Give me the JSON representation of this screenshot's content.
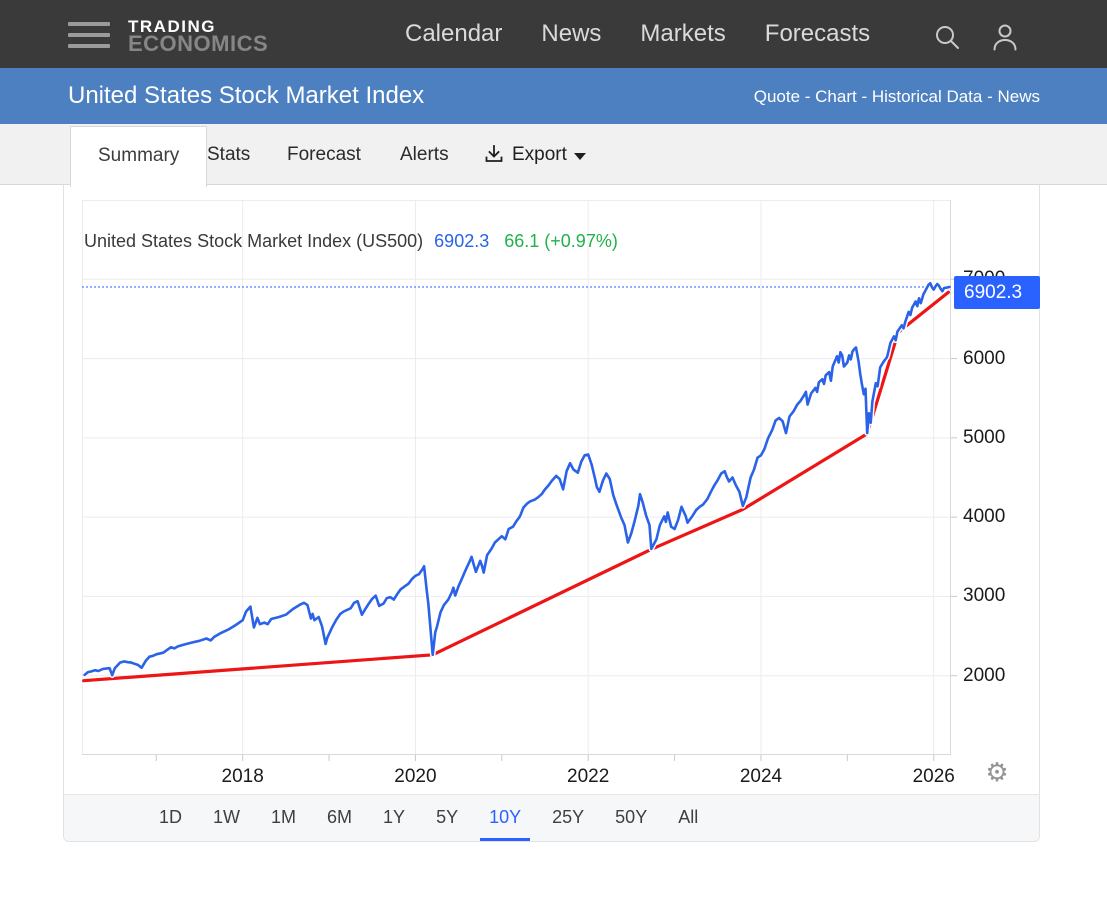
{
  "nav": {
    "logo_line1": "TRADING",
    "logo_line2": "ECONOMICS",
    "items": [
      "Calendar",
      "News",
      "Markets",
      "Forecasts"
    ]
  },
  "subheader": {
    "title": "United States Stock Market Index",
    "links": [
      "Quote",
      "Chart",
      "Historical Data",
      "News"
    ],
    "separator": " - "
  },
  "tabs": {
    "items": [
      "Summary",
      "Stats",
      "Forecast",
      "Alerts"
    ],
    "active": "Summary",
    "export": {
      "label": "Export"
    }
  },
  "chart": {
    "heading": "United States Stock Market Index (US500)",
    "last_value_text": "6902.3",
    "change_text": "66.1 (+0.97%)",
    "price_badge": "6902.3",
    "colors": {
      "line": "#2a62e8",
      "trend": "#ed1515",
      "badge": "#2962ff",
      "value_text": "#2a62e8",
      "change_text": "#21b14b",
      "grid": "#ececec",
      "axis_border": "#d9d9d9",
      "tick": "#c9c9c9",
      "dotted": "#2962ff"
    }
  },
  "chart_data": {
    "type": "line",
    "title": "United States Stock Market Index (US500)",
    "last_value": 6902.3,
    "change": 66.1,
    "change_pct": "+0.97%",
    "x_ticks": [
      2018,
      2020,
      2022,
      2024,
      2026
    ],
    "y_ticks": [
      2000,
      3000,
      4000,
      5000,
      6000,
      7000
    ],
    "x_range": [
      2016.14,
      2026.2
    ],
    "y_range": [
      1000,
      8000
    ],
    "grid": true,
    "legend_position": "none",
    "current_value_line": 6902.3,
    "series": [
      {
        "name": "US500 index",
        "color": "#2a62e8",
        "points": [
          [
            2016.17,
            2010
          ],
          [
            2016.21,
            2045
          ],
          [
            2016.25,
            2055
          ],
          [
            2016.29,
            2070
          ],
          [
            2016.33,
            2060
          ],
          [
            2016.38,
            2085
          ],
          [
            2016.42,
            2090
          ],
          [
            2016.46,
            2095
          ],
          [
            2016.49,
            2005
          ],
          [
            2016.52,
            2095
          ],
          [
            2016.58,
            2165
          ],
          [
            2016.63,
            2180
          ],
          [
            2016.67,
            2170
          ],
          [
            2016.71,
            2165
          ],
          [
            2016.75,
            2150
          ],
          [
            2016.79,
            2135
          ],
          [
            2016.83,
            2100
          ],
          [
            2016.88,
            2190
          ],
          [
            2016.92,
            2240
          ],
          [
            2016.96,
            2250
          ],
          [
            2017.0,
            2270
          ],
          [
            2017.08,
            2290
          ],
          [
            2017.17,
            2360
          ],
          [
            2017.21,
            2345
          ],
          [
            2017.25,
            2370
          ],
          [
            2017.33,
            2395
          ],
          [
            2017.42,
            2420
          ],
          [
            2017.5,
            2440
          ],
          [
            2017.58,
            2470
          ],
          [
            2017.63,
            2445
          ],
          [
            2017.67,
            2490
          ],
          [
            2017.75,
            2540
          ],
          [
            2017.83,
            2580
          ],
          [
            2017.92,
            2640
          ],
          [
            2018.0,
            2700
          ],
          [
            2018.04,
            2810
          ],
          [
            2018.09,
            2872
          ],
          [
            2018.13,
            2610
          ],
          [
            2018.17,
            2730
          ],
          [
            2018.2,
            2650
          ],
          [
            2018.25,
            2670
          ],
          [
            2018.29,
            2650
          ],
          [
            2018.33,
            2715
          ],
          [
            2018.42,
            2740
          ],
          [
            2018.5,
            2770
          ],
          [
            2018.58,
            2840
          ],
          [
            2018.67,
            2900
          ],
          [
            2018.71,
            2920
          ],
          [
            2018.75,
            2890
          ],
          [
            2018.79,
            2720
          ],
          [
            2018.81,
            2780
          ],
          [
            2018.83,
            2700
          ],
          [
            2018.88,
            2740
          ],
          [
            2018.92,
            2620
          ],
          [
            2018.96,
            2400
          ],
          [
            2018.98,
            2480
          ],
          [
            2019.04,
            2620
          ],
          [
            2019.08,
            2700
          ],
          [
            2019.13,
            2780
          ],
          [
            2019.17,
            2810
          ],
          [
            2019.25,
            2850
          ],
          [
            2019.29,
            2920
          ],
          [
            2019.33,
            2940
          ],
          [
            2019.38,
            2770
          ],
          [
            2019.42,
            2840
          ],
          [
            2019.46,
            2910
          ],
          [
            2019.5,
            2970
          ],
          [
            2019.54,
            3010
          ],
          [
            2019.58,
            2880
          ],
          [
            2019.63,
            2910
          ],
          [
            2019.67,
            2980
          ],
          [
            2019.71,
            2990
          ],
          [
            2019.75,
            2960
          ],
          [
            2019.79,
            3030
          ],
          [
            2019.83,
            3090
          ],
          [
            2019.88,
            3130
          ],
          [
            2019.92,
            3160
          ],
          [
            2019.96,
            3220
          ],
          [
            2020.0,
            3260
          ],
          [
            2020.04,
            3280
          ],
          [
            2020.08,
            3340
          ],
          [
            2020.1,
            3380
          ],
          [
            2020.13,
            3080
          ],
          [
            2020.15,
            2900
          ],
          [
            2020.17,
            2650
          ],
          [
            2020.2,
            2264
          ],
          [
            2020.23,
            2550
          ],
          [
            2020.25,
            2620
          ],
          [
            2020.29,
            2800
          ],
          [
            2020.33,
            2890
          ],
          [
            2020.38,
            2960
          ],
          [
            2020.42,
            3050
          ],
          [
            2020.44,
            3110
          ],
          [
            2020.46,
            3010
          ],
          [
            2020.5,
            3130
          ],
          [
            2020.54,
            3230
          ],
          [
            2020.58,
            3330
          ],
          [
            2020.63,
            3450
          ],
          [
            2020.65,
            3500
          ],
          [
            2020.67,
            3420
          ],
          [
            2020.7,
            3310
          ],
          [
            2020.75,
            3450
          ],
          [
            2020.77,
            3390
          ],
          [
            2020.79,
            3300
          ],
          [
            2020.83,
            3520
          ],
          [
            2020.88,
            3600
          ],
          [
            2020.92,
            3680
          ],
          [
            2020.96,
            3720
          ],
          [
            2021.0,
            3760
          ],
          [
            2021.04,
            3720
          ],
          [
            2021.08,
            3850
          ],
          [
            2021.13,
            3880
          ],
          [
            2021.17,
            3950
          ],
          [
            2021.21,
            4010
          ],
          [
            2021.25,
            4120
          ],
          [
            2021.29,
            4170
          ],
          [
            2021.33,
            4200
          ],
          [
            2021.38,
            4220
          ],
          [
            2021.42,
            4250
          ],
          [
            2021.46,
            4290
          ],
          [
            2021.5,
            4350
          ],
          [
            2021.54,
            4400
          ],
          [
            2021.58,
            4460
          ],
          [
            2021.63,
            4520
          ],
          [
            2021.67,
            4480
          ],
          [
            2021.71,
            4350
          ],
          [
            2021.75,
            4580
          ],
          [
            2021.79,
            4680
          ],
          [
            2021.83,
            4600
          ],
          [
            2021.88,
            4560
          ],
          [
            2021.92,
            4700
          ],
          [
            2021.96,
            4780
          ],
          [
            2022.0,
            4790
          ],
          [
            2022.04,
            4660
          ],
          [
            2022.08,
            4480
          ],
          [
            2022.1,
            4380
          ],
          [
            2022.13,
            4320
          ],
          [
            2022.17,
            4460
          ],
          [
            2022.21,
            4550
          ],
          [
            2022.25,
            4480
          ],
          [
            2022.29,
            4280
          ],
          [
            2022.33,
            4150
          ],
          [
            2022.38,
            4000
          ],
          [
            2022.42,
            3900
          ],
          [
            2022.46,
            3680
          ],
          [
            2022.5,
            3800
          ],
          [
            2022.54,
            3960
          ],
          [
            2022.58,
            4140
          ],
          [
            2022.6,
            4290
          ],
          [
            2022.63,
            4190
          ],
          [
            2022.67,
            4020
          ],
          [
            2022.71,
            3900
          ],
          [
            2022.73,
            3600
          ],
          [
            2022.77,
            3680
          ],
          [
            2022.79,
            3720
          ],
          [
            2022.83,
            3900
          ],
          [
            2022.88,
            4010
          ],
          [
            2022.9,
            3940
          ],
          [
            2022.92,
            4060
          ],
          [
            2022.96,
            3880
          ],
          [
            2023.0,
            3850
          ],
          [
            2023.04,
            3960
          ],
          [
            2023.08,
            4130
          ],
          [
            2023.13,
            4010
          ],
          [
            2023.15,
            3930
          ],
          [
            2023.21,
            4020
          ],
          [
            2023.25,
            4090
          ],
          [
            2023.29,
            4130
          ],
          [
            2023.33,
            4160
          ],
          [
            2023.38,
            4230
          ],
          [
            2023.42,
            4320
          ],
          [
            2023.46,
            4400
          ],
          [
            2023.5,
            4470
          ],
          [
            2023.54,
            4550
          ],
          [
            2023.58,
            4580
          ],
          [
            2023.6,
            4520
          ],
          [
            2023.63,
            4450
          ],
          [
            2023.67,
            4500
          ],
          [
            2023.71,
            4400
          ],
          [
            2023.75,
            4320
          ],
          [
            2023.79,
            4140
          ],
          [
            2023.83,
            4250
          ],
          [
            2023.88,
            4500
          ],
          [
            2023.92,
            4600
          ],
          [
            2023.96,
            4750
          ],
          [
            2024.0,
            4780
          ],
          [
            2024.04,
            4860
          ],
          [
            2024.08,
            4990
          ],
          [
            2024.13,
            5100
          ],
          [
            2024.17,
            5220
          ],
          [
            2024.21,
            5250
          ],
          [
            2024.25,
            5210
          ],
          [
            2024.29,
            5060
          ],
          [
            2024.33,
            5270
          ],
          [
            2024.38,
            5340
          ],
          [
            2024.42,
            5420
          ],
          [
            2024.46,
            5470
          ],
          [
            2024.5,
            5540
          ],
          [
            2024.52,
            5580
          ],
          [
            2024.54,
            5420
          ],
          [
            2024.58,
            5560
          ],
          [
            2024.63,
            5630
          ],
          [
            2024.65,
            5580
          ],
          [
            2024.67,
            5700
          ],
          [
            2024.71,
            5740
          ],
          [
            2024.73,
            5680
          ],
          [
            2024.75,
            5790
          ],
          [
            2024.79,
            5830
          ],
          [
            2024.81,
            5720
          ],
          [
            2024.83,
            5900
          ],
          [
            2024.88,
            6030
          ],
          [
            2024.9,
            5950
          ],
          [
            2024.92,
            6080
          ],
          [
            2024.94,
            6040
          ],
          [
            2024.96,
            5900
          ],
          [
            2025.0,
            5950
          ],
          [
            2025.02,
            6040
          ],
          [
            2025.04,
            5990
          ],
          [
            2025.06,
            6090
          ],
          [
            2025.08,
            6120
          ],
          [
            2025.1,
            6140
          ],
          [
            2025.13,
            5960
          ],
          [
            2025.15,
            5800
          ],
          [
            2025.17,
            5670
          ],
          [
            2025.19,
            5550
          ],
          [
            2025.21,
            5620
          ],
          [
            2025.23,
            5060
          ],
          [
            2025.25,
            5310
          ],
          [
            2025.27,
            5190
          ],
          [
            2025.29,
            5460
          ],
          [
            2025.33,
            5690
          ],
          [
            2025.35,
            5650
          ],
          [
            2025.38,
            5890
          ],
          [
            2025.42,
            5960
          ],
          [
            2025.46,
            6020
          ],
          [
            2025.5,
            6200
          ],
          [
            2025.54,
            6280
          ],
          [
            2025.56,
            6230
          ],
          [
            2025.58,
            6340
          ],
          [
            2025.63,
            6420
          ],
          [
            2025.65,
            6380
          ],
          [
            2025.67,
            6460
          ],
          [
            2025.71,
            6590
          ],
          [
            2025.73,
            6550
          ],
          [
            2025.75,
            6640
          ],
          [
            2025.79,
            6720
          ],
          [
            2025.81,
            6660
          ],
          [
            2025.83,
            6760
          ],
          [
            2025.85,
            6700
          ],
          [
            2025.88,
            6810
          ],
          [
            2025.9,
            6850
          ],
          [
            2025.92,
            6890
          ],
          [
            2025.94,
            6930
          ],
          [
            2025.96,
            6950
          ],
          [
            2025.98,
            6900
          ],
          [
            2026.0,
            6870
          ],
          [
            2026.02,
            6910
          ],
          [
            2026.04,
            6940
          ],
          [
            2026.06,
            6920
          ],
          [
            2026.08,
            6880
          ],
          [
            2026.1,
            6850
          ],
          [
            2026.12,
            6890
          ],
          [
            2026.15,
            6895
          ],
          [
            2026.18,
            6902.3
          ]
        ]
      },
      {
        "name": "trend line",
        "color": "#ed1515",
        "points": [
          [
            2016.16,
            1937
          ],
          [
            2020.2,
            2264
          ],
          [
            2022.73,
            3595
          ],
          [
            2023.79,
            4098
          ],
          [
            2025.23,
            5052
          ],
          [
            2025.59,
            6333
          ],
          [
            2026.17,
            6836
          ]
        ]
      }
    ]
  },
  "range_selector": {
    "options": [
      "1D",
      "1W",
      "1M",
      "6M",
      "1Y",
      "5Y",
      "10Y",
      "25Y",
      "50Y",
      "All"
    ],
    "active": "10Y",
    "active_color": "#2962ff"
  }
}
